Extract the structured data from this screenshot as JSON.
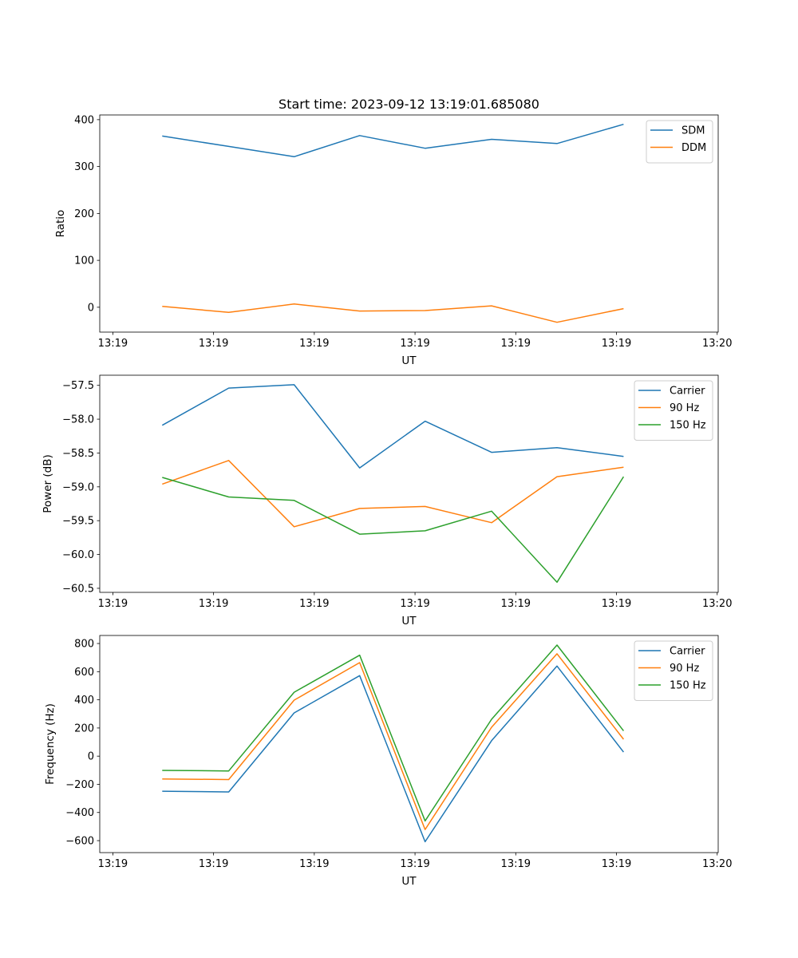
{
  "chart_data": {
    "title": "Start time: 2023-09-12 13:19:01.685080",
    "x_seconds": [
      4.9,
      11.5,
      18.0,
      24.5,
      31.0,
      37.6,
      44.1,
      50.7
    ],
    "xlim": [
      -1.3,
      60.1
    ],
    "xticks": [
      0,
      10,
      20,
      30,
      40,
      50,
      60
    ],
    "xticklabels": [
      "13:19",
      "13:19",
      "13:19",
      "13:19",
      "13:19",
      "13:19",
      "13:20"
    ],
    "colors": {
      "blue": "#1f77b4",
      "orange": "#ff7f0e",
      "green": "#2ca02c"
    },
    "subplots": [
      {
        "type": "line",
        "xlabel": "UT",
        "ylabel": "Ratio",
        "ylim": [
          -53,
          410
        ],
        "yticks": [
          0,
          100,
          200,
          300,
          400
        ],
        "yticklabels": [
          "0",
          "100",
          "200",
          "300",
          "400"
        ],
        "legend": "top-right",
        "series": [
          {
            "name": "SDM",
            "color": "#1f77b4",
            "values": [
              365,
              343,
              321,
              366,
              339,
              358,
              349,
              390
            ]
          },
          {
            "name": "DDM",
            "color": "#ff7f0e",
            "values": [
              2,
              -11,
              7,
              -8,
              -7,
              3,
              -32,
              -3
            ]
          }
        ]
      },
      {
        "type": "line",
        "xlabel": "UT",
        "ylabel": "Power (dB)",
        "ylim": [
          -60.56,
          -57.35
        ],
        "yticks": [
          -60.5,
          -60.0,
          -59.5,
          -59.0,
          -58.5,
          -58.0,
          -57.5
        ],
        "yticklabels": [
          "−60.5",
          "−60.0",
          "−59.5",
          "−59.0",
          "−58.5",
          "−58.0",
          "−57.5"
        ],
        "legend": "top-right",
        "series": [
          {
            "name": "Carrier",
            "color": "#1f77b4",
            "values": [
              -58.09,
              -57.54,
              -57.49,
              -58.72,
              -58.03,
              -58.49,
              -58.42,
              -58.55
            ]
          },
          {
            "name": "90 Hz",
            "color": "#ff7f0e",
            "values": [
              -58.96,
              -58.61,
              -59.59,
              -59.32,
              -59.29,
              -59.53,
              -58.85,
              -58.71
            ]
          },
          {
            "name": "150 Hz",
            "color": "#2ca02c",
            "values": [
              -58.86,
              -59.15,
              -59.2,
              -59.7,
              -59.65,
              -59.36,
              -60.41,
              -58.85
            ]
          }
        ]
      },
      {
        "type": "line",
        "xlabel": "UT",
        "ylabel": "Frequency (Hz)",
        "ylim": [
          -685,
          857
        ],
        "yticks": [
          -600,
          -400,
          -200,
          0,
          200,
          400,
          600,
          800
        ],
        "yticklabels": [
          "−600",
          "−400",
          "−200",
          "0",
          "200",
          "400",
          "600",
          "800"
        ],
        "legend": "top-right",
        "series": [
          {
            "name": "Carrier",
            "color": "#1f77b4",
            "values": [
              -249,
              -254,
              307,
              572,
              -608,
              110,
              640,
              29
            ]
          },
          {
            "name": "90 Hz",
            "color": "#ff7f0e",
            "values": [
              -162,
              -166,
              398,
              664,
              -521,
              205,
              727,
              120
            ]
          },
          {
            "name": "150 Hz",
            "color": "#2ca02c",
            "values": [
              -101,
              -105,
              454,
              717,
              -460,
              262,
              789,
              180
            ]
          }
        ]
      }
    ]
  }
}
